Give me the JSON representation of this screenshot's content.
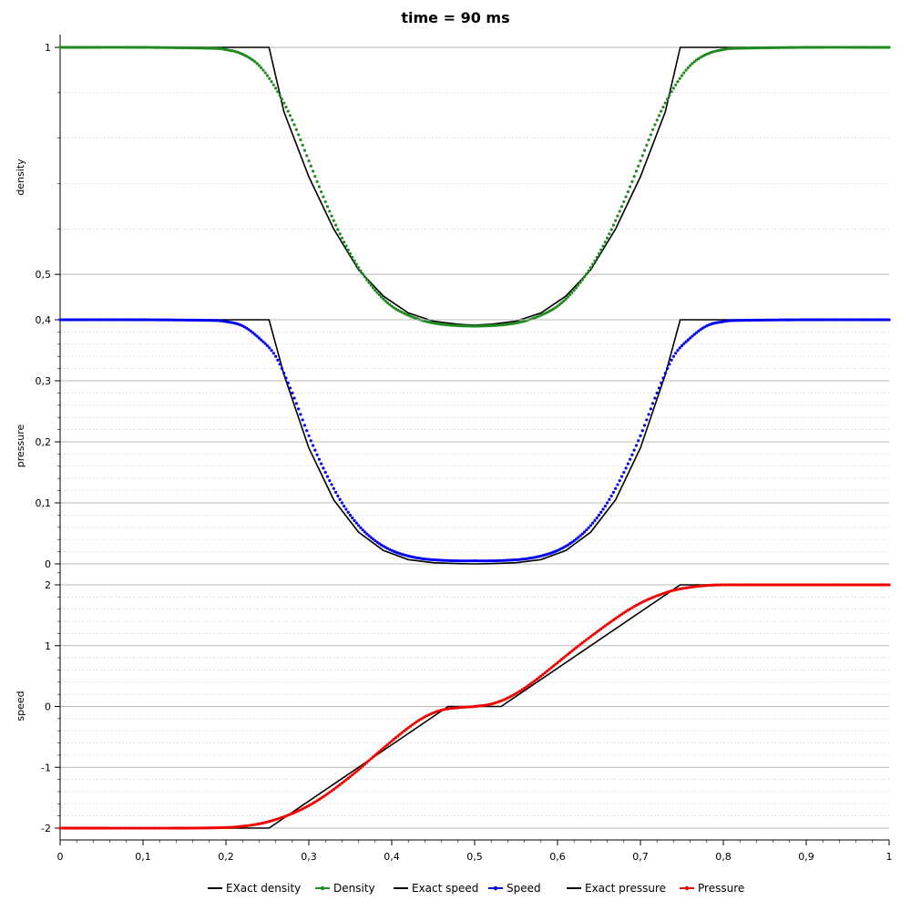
{
  "chart_data": {
    "type": "line",
    "title": "time = 90 ms",
    "x_axis": {
      "range": [
        0,
        1
      ],
      "ticks": [
        "0",
        "0,1",
        "0,2",
        "0,3",
        "0,4",
        "0,5",
        "0,6",
        "0,7",
        "0,8",
        "0,9",
        "1"
      ]
    },
    "panels": [
      {
        "name": "density",
        "ylabel": "density",
        "ylim": [
          0.4,
          1.0
        ],
        "yticks": [
          {
            "value": 1.0,
            "label": "1"
          },
          {
            "value": 0.5,
            "label": "0,5"
          }
        ],
        "series": [
          {
            "name": "EXact density",
            "color": "#000000",
            "marker": "none",
            "x": [
              0.0,
              0.252,
              0.27,
              0.3,
              0.33,
              0.36,
              0.39,
              0.42,
              0.45,
              0.48,
              0.5,
              0.52,
              0.55,
              0.58,
              0.61,
              0.64,
              0.67,
              0.7,
              0.73,
              0.748,
              1.0
            ],
            "y": [
              1.0,
              1.0,
              0.858,
              0.715,
              0.6,
              0.51,
              0.452,
              0.415,
              0.397,
              0.39,
              0.388,
              0.39,
              0.397,
              0.415,
              0.452,
              0.51,
              0.6,
              0.715,
              0.858,
              1.0,
              1.0
            ]
          },
          {
            "name": "Density",
            "color": "#1f8a1f",
            "marker": "dot",
            "x": [
              0.0,
              0.1,
              0.18,
              0.2,
              0.22,
              0.24,
              0.26,
              0.28,
              0.3,
              0.32,
              0.34,
              0.36,
              0.38,
              0.4,
              0.42,
              0.44,
              0.46,
              0.48,
              0.5,
              0.52,
              0.54,
              0.56,
              0.58,
              0.6,
              0.62,
              0.64,
              0.66,
              0.68,
              0.7,
              0.72,
              0.74,
              0.76,
              0.78,
              0.8,
              0.82,
              0.9,
              1.0
            ],
            "y": [
              1.0,
              1.0,
              0.998,
              0.995,
              0.985,
              0.96,
              0.91,
              0.84,
              0.75,
              0.66,
              0.58,
              0.515,
              0.465,
              0.43,
              0.41,
              0.397,
              0.39,
              0.387,
              0.386,
              0.387,
              0.39,
              0.397,
              0.41,
              0.43,
              0.465,
              0.515,
              0.58,
              0.66,
              0.75,
              0.84,
              0.91,
              0.96,
              0.985,
              0.995,
              0.998,
              1.0,
              1.0
            ]
          }
        ]
      },
      {
        "name": "pressure",
        "ylabel": "pressure",
        "ylim": [
          0,
          0.4
        ],
        "yticks": [
          {
            "value": 0.4,
            "label": "0,4"
          },
          {
            "value": 0.3,
            "label": "0,3"
          },
          {
            "value": 0.2,
            "label": "0,2"
          },
          {
            "value": 0.1,
            "label": "0,1"
          },
          {
            "value": 0,
            "label": "0"
          }
        ],
        "series": [
          {
            "name": "Exact pressure",
            "color": "#000000",
            "marker": "none",
            "x": [
              0.0,
              0.252,
              0.27,
              0.3,
              0.33,
              0.36,
              0.39,
              0.42,
              0.45,
              0.48,
              0.5,
              0.52,
              0.55,
              0.58,
              0.61,
              0.64,
              0.67,
              0.7,
              0.73,
              0.748,
              1.0
            ],
            "y": [
              0.4,
              0.4,
              0.31,
              0.19,
              0.105,
              0.052,
              0.022,
              0.007,
              0.002,
              0.0005,
              0.0,
              0.0005,
              0.002,
              0.007,
              0.022,
              0.052,
              0.105,
              0.19,
              0.31,
              0.4,
              0.4
            ]
          },
          {
            "name": "Speed",
            "color": "#0000ee",
            "marker": "dot",
            "x": [
              0.0,
              0.1,
              0.18,
              0.2,
              0.22,
              0.24,
              0.26,
              0.28,
              0.3,
              0.32,
              0.34,
              0.36,
              0.38,
              0.4,
              0.42,
              0.44,
              0.46,
              0.48,
              0.5,
              0.52,
              0.54,
              0.56,
              0.58,
              0.6,
              0.62,
              0.64,
              0.66,
              0.68,
              0.7,
              0.72,
              0.74,
              0.76,
              0.78,
              0.8,
              0.82,
              0.9,
              1.0
            ],
            "y": [
              0.4,
              0.4,
              0.399,
              0.397,
              0.39,
              0.37,
              0.34,
              0.28,
              0.21,
              0.15,
              0.1,
              0.063,
              0.038,
              0.022,
              0.013,
              0.008,
              0.006,
              0.005,
              0.005,
              0.005,
              0.006,
              0.008,
              0.013,
              0.022,
              0.038,
              0.063,
              0.1,
              0.15,
              0.21,
              0.28,
              0.34,
              0.37,
              0.39,
              0.397,
              0.399,
              0.4,
              0.4
            ]
          }
        ]
      },
      {
        "name": "speed",
        "ylabel": "speed",
        "ylim": [
          -2,
          2
        ],
        "yticks": [
          {
            "value": 2,
            "label": "2"
          },
          {
            "value": 1,
            "label": "1"
          },
          {
            "value": 0,
            "label": "0"
          },
          {
            "value": -1,
            "label": "-1"
          },
          {
            "value": -2,
            "label": "-2"
          }
        ],
        "series": [
          {
            "name": "Exact speed",
            "color": "#000000",
            "marker": "none",
            "x": [
              0.0,
              0.252,
              0.468,
              0.532,
              0.748,
              1.0
            ],
            "y": [
              -2.0,
              -2.0,
              0.0,
              0.0,
              2.0,
              2.0
            ]
          },
          {
            "name": "Pressure",
            "color": "#ee0000",
            "marker": "dot",
            "x": [
              0.0,
              0.15,
              0.2,
              0.22,
              0.24,
              0.26,
              0.28,
              0.3,
              0.32,
              0.34,
              0.36,
              0.38,
              0.4,
              0.42,
              0.44,
              0.46,
              0.48,
              0.5,
              0.52,
              0.54,
              0.56,
              0.58,
              0.6,
              0.62,
              0.64,
              0.66,
              0.68,
              0.7,
              0.72,
              0.74,
              0.76,
              0.78,
              0.8,
              0.85,
              1.0
            ],
            "y": [
              -2.0,
              -2.0,
              -1.99,
              -1.97,
              -1.93,
              -1.86,
              -1.76,
              -1.63,
              -1.46,
              -1.26,
              -1.04,
              -0.8,
              -0.57,
              -0.35,
              -0.17,
              -0.06,
              -0.02,
              0.0,
              0.04,
              0.14,
              0.3,
              0.5,
              0.72,
              0.94,
              1.15,
              1.35,
              1.54,
              1.7,
              1.82,
              1.91,
              1.96,
              1.99,
              2.0,
              2.0,
              2.0
            ]
          }
        ]
      }
    ],
    "legend": {
      "placement": "bottom",
      "entries": [
        {
          "label": "EXact density",
          "color": "#000000",
          "marker": "none"
        },
        {
          "label": "Density",
          "color": "#1f8a1f",
          "marker": "dot"
        },
        {
          "label": "Exact speed",
          "color": "#000000",
          "marker": "none"
        },
        {
          "label": "Speed",
          "color": "#0000ee",
          "marker": "dot"
        },
        {
          "label": "Exact pressure",
          "color": "#000000",
          "marker": "none"
        },
        {
          "label": "Pressure",
          "color": "#ee0000",
          "marker": "dot"
        }
      ]
    },
    "grid": true
  }
}
